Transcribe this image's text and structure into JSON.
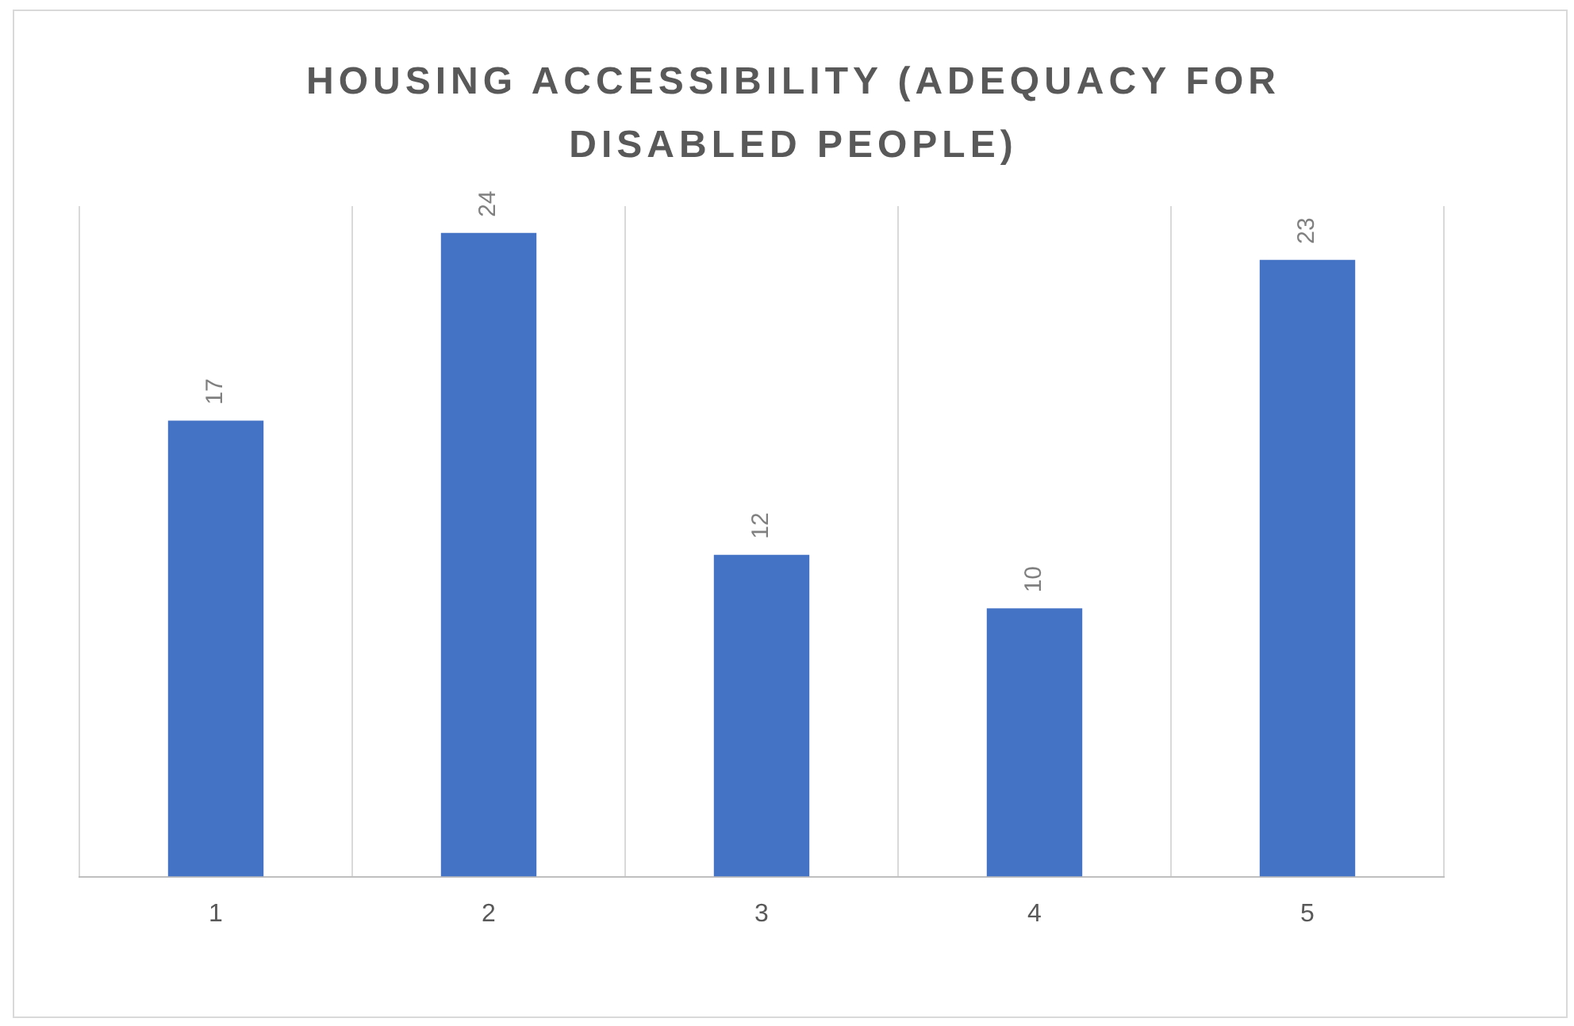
{
  "chart_data": {
    "type": "bar",
    "title": "HOUSING ACCESSIBILITY (ADEQUACY FOR DISABLED PEOPLE)",
    "categories": [
      "1",
      "2",
      "3",
      "4",
      "5"
    ],
    "values": [
      17,
      24,
      12,
      10,
      23
    ],
    "color": "#4472c4",
    "data_labels": true,
    "grid": "x",
    "tick_labels": "x",
    "legend": false
  }
}
